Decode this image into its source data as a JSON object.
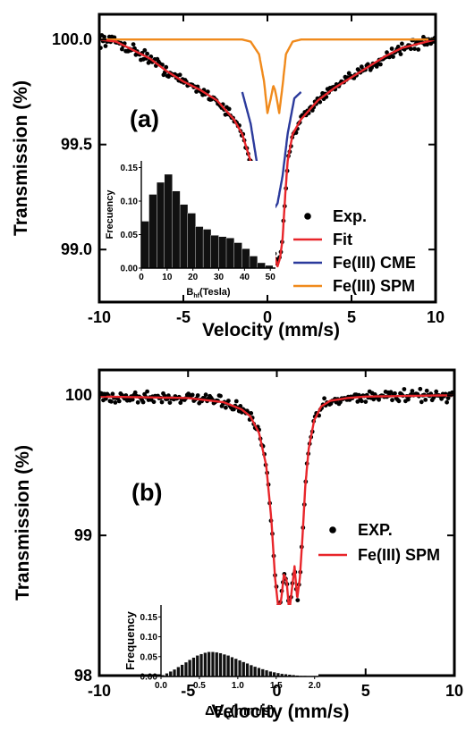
{
  "chart_data": [
    {
      "type": "scatter",
      "panel_label": "(a)",
      "xlabel": "Velocity (mm/s)",
      "ylabel": "Transmission (%)",
      "xlim": [
        -10,
        10
      ],
      "ylim": [
        98.75,
        100.12
      ],
      "x_ticks": [
        -10,
        -5,
        0,
        5,
        10
      ],
      "x_tick_labels": [
        "-10",
        "-5",
        "0",
        "5",
        "10"
      ],
      "y_ticks": [
        99.0,
        99.5,
        100.0
      ],
      "y_tick_labels": [
        "99.0",
        "99.5",
        "100.0"
      ],
      "grid": false,
      "legend_position": "lower-right",
      "series": [
        {
          "name": "Exp.",
          "kind": "points",
          "color": "#000000"
        },
        {
          "name": "Fit",
          "kind": "line",
          "color": "#e8252a",
          "x": [
            -10,
            -9,
            -8,
            -7,
            -6,
            -5,
            -4,
            -3,
            -2,
            -1.5,
            -1,
            -0.6,
            -0.3,
            -0.15,
            0,
            0.15,
            0.3,
            0.45,
            0.6,
            0.75,
            0.9,
            1.05,
            1.2,
            1.5,
            2,
            3,
            4,
            5,
            6,
            7,
            8,
            9,
            10
          ],
          "y": [
            100.0,
            99.99,
            99.95,
            99.91,
            99.85,
            99.8,
            99.76,
            99.71,
            99.62,
            99.55,
            99.42,
            99.25,
            99.05,
            98.96,
            98.92,
            98.96,
            99.0,
            98.96,
            98.92,
            98.96,
            99.05,
            99.25,
            99.42,
            99.55,
            99.62,
            99.71,
            99.77,
            99.82,
            99.87,
            99.92,
            99.96,
            99.98,
            100.0
          ]
        },
        {
          "name": "Fe(III) CME",
          "kind": "line",
          "color": "#2b3a9c",
          "x": [
            -1.5,
            -1.0,
            -0.6,
            -0.3,
            0,
            0.3,
            0.45,
            0.6,
            0.9,
            1.2,
            1.6,
            2.0
          ],
          "y": [
            99.75,
            99.6,
            99.4,
            99.24,
            99.2,
            99.2,
            99.2,
            99.22,
            99.35,
            99.55,
            99.72,
            99.75
          ]
        },
        {
          "name": "Fe(III) SPM",
          "kind": "line",
          "color": "#f08a1c",
          "x": [
            -10,
            -1.5,
            -1.0,
            -0.5,
            -0.2,
            0,
            0.2,
            0.35,
            0.45,
            0.55,
            0.7,
            0.9,
            1.1,
            1.5,
            2,
            10
          ],
          "y": [
            100.0,
            100.0,
            99.99,
            99.93,
            99.8,
            99.65,
            99.72,
            99.78,
            99.76,
            99.72,
            99.65,
            99.78,
            99.93,
            99.99,
            100.0,
            100.0
          ]
        }
      ],
      "inset": {
        "type": "bar",
        "xlabel_main": "B",
        "xlabel_sub": "hf",
        "xlabel_rest": "(Tesla)",
        "ylabel": "Frecuency",
        "xlim": [
          0,
          52
        ],
        "ylim": [
          0,
          0.16
        ],
        "x_ticks": [
          0,
          10,
          20,
          30,
          40,
          50
        ],
        "x_tick_labels": [
          "0",
          "10",
          "20",
          "30",
          "40",
          "50"
        ],
        "y_ticks": [
          0.0,
          0.05,
          0.1,
          0.15
        ],
        "y_tick_labels": [
          "0.00",
          "0.05",
          "0.10",
          "0.15"
        ],
        "bar_width": 3.1,
        "x": [
          1.5,
          4.5,
          7.5,
          10.5,
          13.5,
          16.5,
          19.5,
          22.5,
          25.5,
          28.5,
          31.5,
          34.5,
          37.5,
          40.5,
          43.5,
          46.5,
          49.5
        ],
        "values": [
          0.07,
          0.11,
          0.128,
          0.14,
          0.115,
          0.095,
          0.082,
          0.062,
          0.058,
          0.049,
          0.047,
          0.045,
          0.038,
          0.029,
          0.018,
          0.008,
          0.004
        ]
      }
    },
    {
      "type": "scatter",
      "panel_label": "(b)",
      "xlabel": "Velocity (mm/s)",
      "ylabel": "Transmission (%)",
      "xlim": [
        -10,
        10
      ],
      "ylim": [
        98,
        100.18
      ],
      "x_ticks": [
        -10,
        -5,
        0,
        5,
        10
      ],
      "x_tick_labels": [
        "-10",
        "-5",
        "0",
        "5",
        "10"
      ],
      "y_ticks": [
        98,
        99,
        100
      ],
      "y_tick_labels": [
        "98",
        "99",
        "100"
      ],
      "grid": false,
      "legend_position": "right",
      "series": [
        {
          "name": "EXP.",
          "kind": "points",
          "color": "#000000"
        },
        {
          "name": "Fe(III) SPM",
          "kind": "line",
          "color": "#e8252a",
          "x": [
            -10,
            -5,
            -3,
            -2,
            -1.5,
            -1,
            -0.6,
            -0.3,
            -0.1,
            0.1,
            0.25,
            0.4,
            0.55,
            0.7,
            0.85,
            1.0,
            1.15,
            1.3,
            1.45,
            1.6,
            1.8,
            2.1,
            2.5,
            3,
            4,
            5,
            10
          ],
          "y": [
            99.99,
            99.98,
            99.95,
            99.9,
            99.85,
            99.73,
            99.5,
            99.1,
            98.7,
            98.46,
            98.55,
            98.72,
            98.68,
            98.45,
            98.62,
            98.78,
            98.55,
            98.7,
            99.0,
            99.35,
            99.62,
            99.82,
            99.92,
            99.96,
            99.98,
            99.99,
            100.0
          ]
        }
      ],
      "inset": {
        "type": "bar",
        "xlabel_main": "ΔE",
        "xlabel_sub": "Q",
        "xlabel_rest": "(mm/s)",
        "ylabel": "Frequency",
        "xlim": [
          0,
          2.05
        ],
        "ylim": [
          0,
          0.18
        ],
        "x_ticks": [
          0.0,
          0.5,
          1.0,
          1.5,
          2.0
        ],
        "x_tick_labels": [
          "0.0",
          "0.5",
          "1.0",
          "1.5",
          "2.0"
        ],
        "y_ticks": [
          0.0,
          0.05,
          0.1,
          0.15
        ],
        "y_tick_labels": [
          "0.00",
          "0.05",
          "0.10",
          "0.15"
        ],
        "bar_width": 0.043,
        "x": [
          0.025,
          0.075,
          0.125,
          0.175,
          0.225,
          0.275,
          0.325,
          0.375,
          0.425,
          0.475,
          0.525,
          0.575,
          0.625,
          0.675,
          0.725,
          0.775,
          0.825,
          0.875,
          0.925,
          0.975,
          1.025,
          1.075,
          1.125,
          1.175,
          1.225,
          1.275,
          1.325,
          1.375,
          1.425,
          1.475,
          1.525,
          1.575,
          1.625,
          1.675,
          1.725,
          1.775,
          1.825,
          1.875,
          1.925,
          1.975
        ],
        "values": [
          0.004,
          0.008,
          0.013,
          0.018,
          0.024,
          0.03,
          0.036,
          0.042,
          0.048,
          0.053,
          0.057,
          0.06,
          0.062,
          0.062,
          0.061,
          0.059,
          0.056,
          0.053,
          0.049,
          0.045,
          0.041,
          0.037,
          0.033,
          0.029,
          0.025,
          0.022,
          0.019,
          0.016,
          0.013,
          0.011,
          0.009,
          0.007,
          0.006,
          0.005,
          0.004,
          0.003,
          0.002,
          0.002,
          0.001,
          0.001
        ]
      }
    }
  ]
}
